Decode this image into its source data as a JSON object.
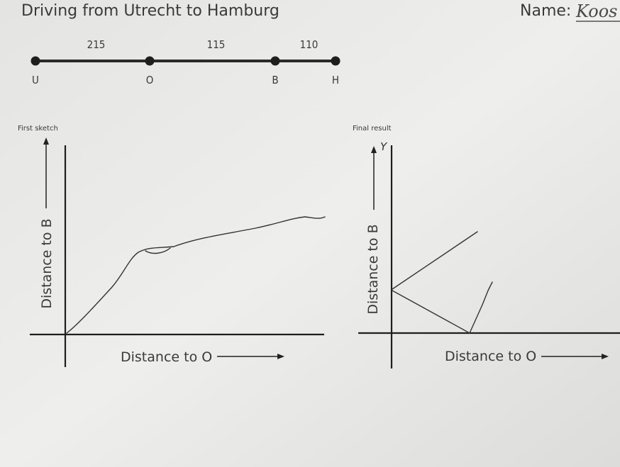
{
  "header": {
    "title": "Driving from Utrecht to Hamburg",
    "name_label": "Name:",
    "name_value": "Koos"
  },
  "route": {
    "stops": [
      "U",
      "O",
      "B",
      "H"
    ],
    "distances": [
      215,
      115,
      110
    ]
  },
  "panels": [
    {
      "title": "First sketch",
      "y_label": "Distance to B",
      "x_label": "Distance to O"
    },
    {
      "title": "Final result",
      "y_label": "Distance to B",
      "x_label": "Distance to O",
      "y_note": "Y"
    }
  ]
}
